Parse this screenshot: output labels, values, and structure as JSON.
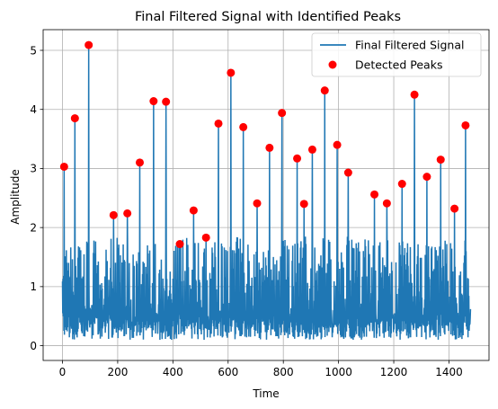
{
  "chart_data": {
    "type": "line",
    "title": "Final Filtered Signal with Identified Peaks",
    "xlabel": "Time",
    "ylabel": "Amplitude",
    "xlim": [
      -70,
      1545
    ],
    "ylim": [
      -0.25,
      5.35
    ],
    "xticks": [
      0,
      200,
      400,
      600,
      800,
      1000,
      1200,
      1400
    ],
    "yticks": [
      0,
      1,
      2,
      3,
      4,
      5
    ],
    "grid": true,
    "legend_position": "top-right",
    "series": [
      {
        "name": "Final Filtered Signal",
        "type": "line",
        "color": "#1f77b4",
        "x_range": [
          0,
          1478
        ],
        "baseline_note_values": [
          0.1,
          1.8
        ]
      },
      {
        "name": "Detected Peaks",
        "type": "scatter",
        "color": "#ff0000",
        "x": [
          6,
          45,
          95,
          185,
          235,
          280,
          330,
          375,
          425,
          475,
          520,
          565,
          610,
          655,
          705,
          750,
          795,
          850,
          875,
          905,
          950,
          995,
          1035,
          1130,
          1175,
          1230,
          1275,
          1320,
          1370,
          1420,
          1460
        ],
        "y": [
          3.03,
          3.85,
          5.09,
          2.21,
          2.24,
          3.1,
          4.14,
          4.13,
          1.72,
          2.29,
          1.83,
          3.76,
          4.62,
          3.7,
          2.41,
          3.35,
          3.94,
          3.17,
          2.4,
          3.32,
          4.32,
          3.4,
          2.93,
          2.56,
          2.41,
          2.74,
          4.25,
          2.86,
          3.15,
          2.32,
          3.73
        ]
      }
    ]
  }
}
